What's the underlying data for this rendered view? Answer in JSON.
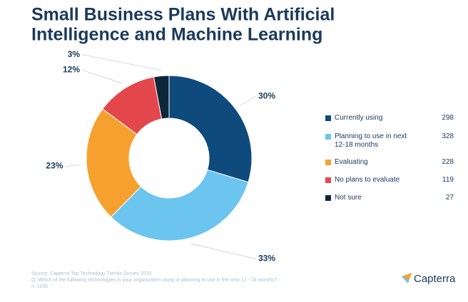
{
  "chart_data": {
    "type": "donut",
    "title_lines": [
      "Small Business Plans With Artificial",
      "Intelligence and Machine Learning"
    ],
    "categories": [
      "Currently using",
      "Planning to use in next 12-18 months",
      "Evaluating",
      "No plans to evaluate",
      "Not sure"
    ],
    "values": [
      30,
      33,
      23,
      12,
      3
    ],
    "value_labels": [
      "30%",
      "33%",
      "23%",
      "12%",
      "3%"
    ],
    "counts": [
      298,
      328,
      228,
      119,
      27
    ],
    "colors": [
      "#0f4a7c",
      "#6cc5ee",
      "#f6a12f",
      "#e4474b",
      "#0e2639"
    ],
    "source_lines": [
      "Source: Capterra Top Technology Trends Survey 2020",
      "Q: Which of the following technologies is your organization using or planning to use in the next 12 - 18 months?",
      "n: 1000"
    ],
    "logo": "Capterra"
  }
}
